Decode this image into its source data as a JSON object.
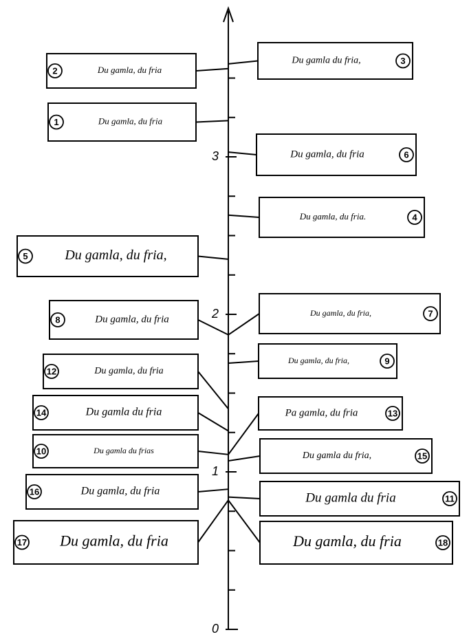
{
  "axis": {
    "major_ticks": [
      0,
      1,
      2,
      3
    ],
    "minor_ticks": [
      0.25,
      0.5,
      0.75,
      1.25,
      1.5,
      1.75,
      2.25,
      2.5,
      2.75,
      3.25,
      3.5
    ]
  },
  "samples": [
    {
      "number": 1,
      "text": "Du gamla, du fria",
      "value": 3.23
    },
    {
      "number": 2,
      "text": "Du gamla, du fria",
      "value": 3.56
    },
    {
      "number": 3,
      "text": "Du gamla du fria,",
      "value": 3.59
    },
    {
      "number": 4,
      "text": "Du gamla, du fria.",
      "value": 2.63
    },
    {
      "number": 5,
      "text": "Du gamla, du fria,",
      "value": 2.35
    },
    {
      "number": 6,
      "text": "Du gamla, du fria",
      "value": 3.03
    },
    {
      "number": 7,
      "text": "Du gamla, du fria,",
      "value": 1.87
    },
    {
      "number": 8,
      "text": "Du gamla, du fria",
      "value": 1.87
    },
    {
      "number": 9,
      "text": "Du gamla, du fria,",
      "value": 1.69
    },
    {
      "number": 10,
      "text": "Du gamla du frias",
      "value": 1.11
    },
    {
      "number": 11,
      "text": "Du gamla du fria",
      "value": 0.84
    },
    {
      "number": 12,
      "text": "Du gamla, du fria",
      "value": 1.4
    },
    {
      "number": 13,
      "text": "Pa gamla, du fria",
      "value": 1.11
    },
    {
      "number": 14,
      "text": "Du gamla du fria",
      "value": 1.26
    },
    {
      "number": 15,
      "text": "Du gamla du fria,",
      "value": 1.07
    },
    {
      "number": 16,
      "text": "Du gamla, du fria",
      "value": 0.89
    },
    {
      "number": 17,
      "text": "Du gamla, du fria",
      "value": 0.82
    },
    {
      "number": 18,
      "text": "Du gamla, du fria",
      "value": 0.82
    }
  ]
}
